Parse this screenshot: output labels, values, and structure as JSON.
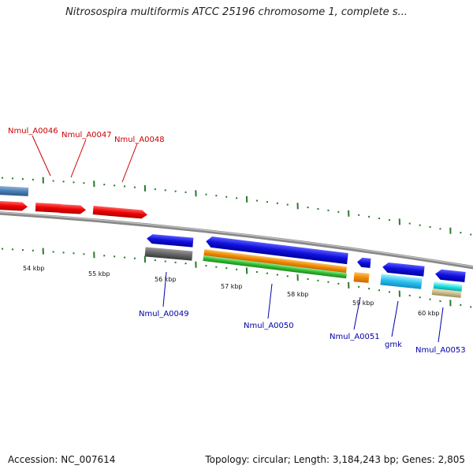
{
  "title": "Nitrosospira multiformis ATCC 25196 chromosome 1, complete s...",
  "footer": {
    "accession": "Accession: NC_007614",
    "summary": "Topology: circular; Length: 3,184,243 bp; Genes: 2,805"
  },
  "colors": {
    "backbone": "#888888",
    "ticks": "#2a7a2a",
    "top_labels": "#cc0000",
    "bottom_labels": "#0000aa"
  },
  "kbp_labels": [
    "54 kbp",
    "55 kbp",
    "56 kbp",
    "57 kbp",
    "58 kbp",
    "59 kbp",
    "60 kbp"
  ],
  "gene_labels_top": [
    "Nmul_A0046",
    "Nmul_A0047",
    "Nmul_A0048"
  ],
  "gene_labels_bottom": [
    "Nmul_A0049",
    "Nmul_A0050",
    "Nmul_A0051",
    "gmk",
    "Nmul_A0053"
  ]
}
